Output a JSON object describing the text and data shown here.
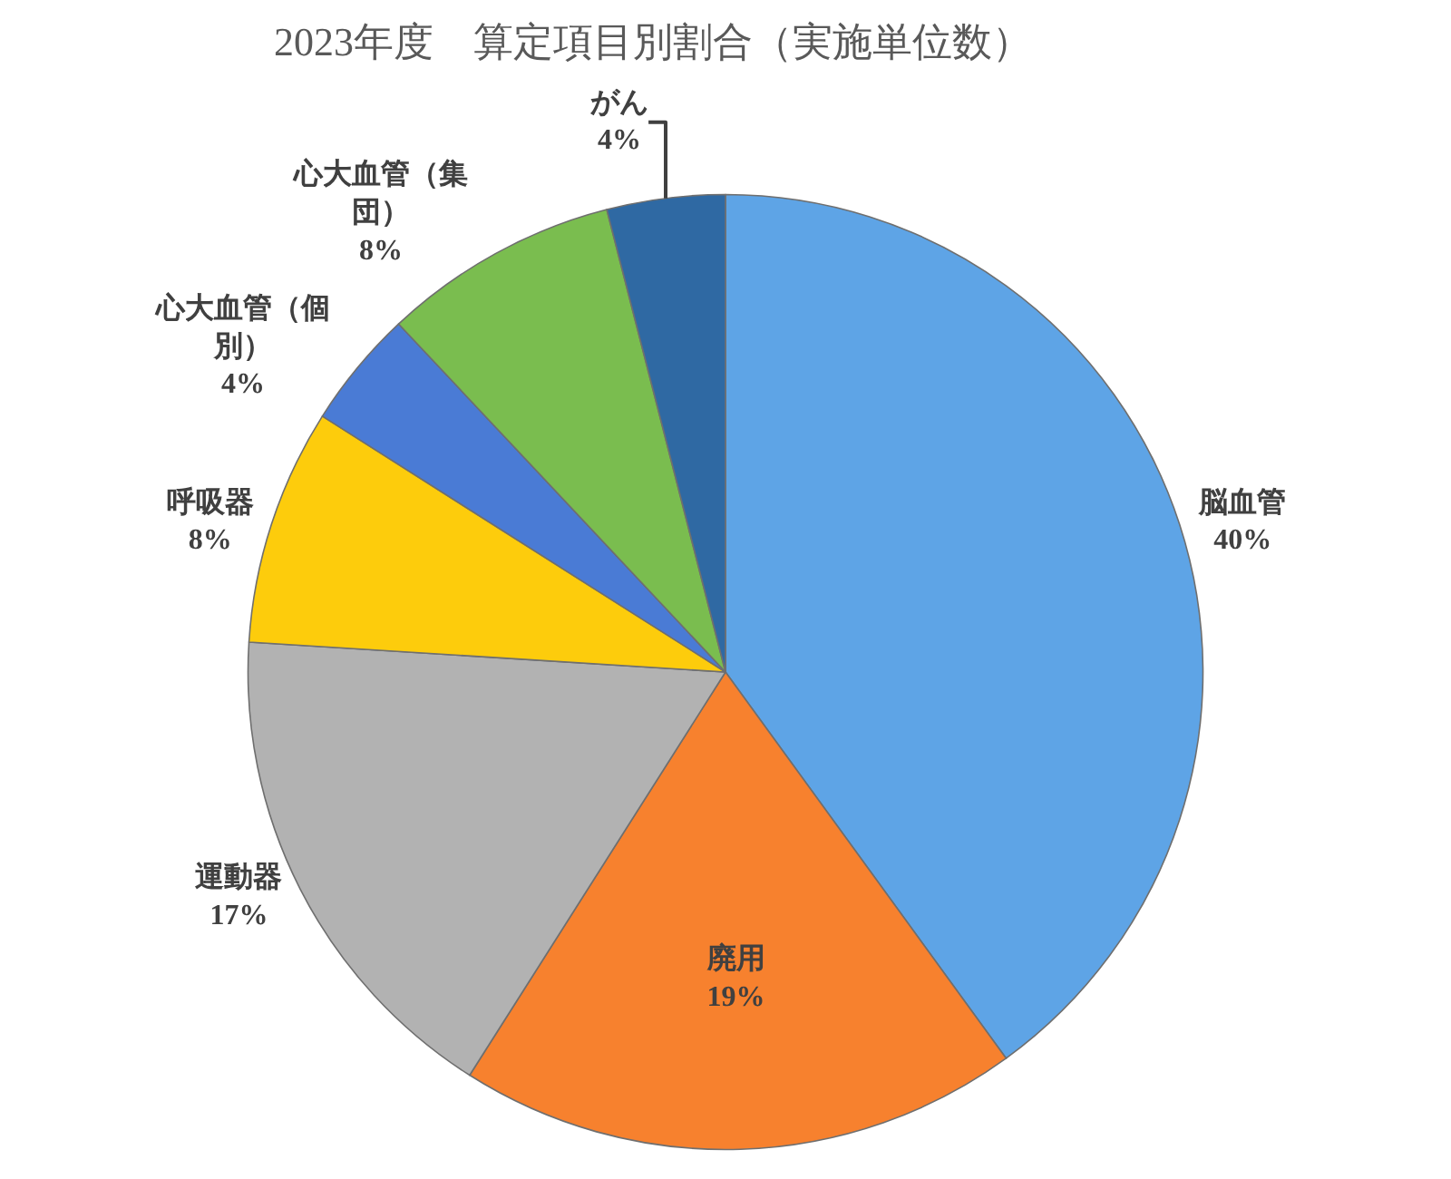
{
  "chart_data": {
    "type": "pie",
    "title": "2023年度　算定項目別割合（実施単位数）",
    "categories": [
      "脳血管",
      "廃用",
      "運動器",
      "呼吸器",
      "心大血管（個別）",
      "心大血管（集団）",
      "がん"
    ],
    "values": [
      40,
      19,
      17,
      8,
      4,
      8,
      4
    ],
    "colors": [
      "#5ea4e6",
      "#f7812e",
      "#b2b2b2",
      "#fdcc0c",
      "#4a7bd5",
      "#7abd4f",
      "#2f69a3"
    ],
    "value_labels": [
      "40%",
      "19%",
      "17%",
      "8%",
      "4%",
      "8%",
      "4%"
    ],
    "legend": false
  }
}
